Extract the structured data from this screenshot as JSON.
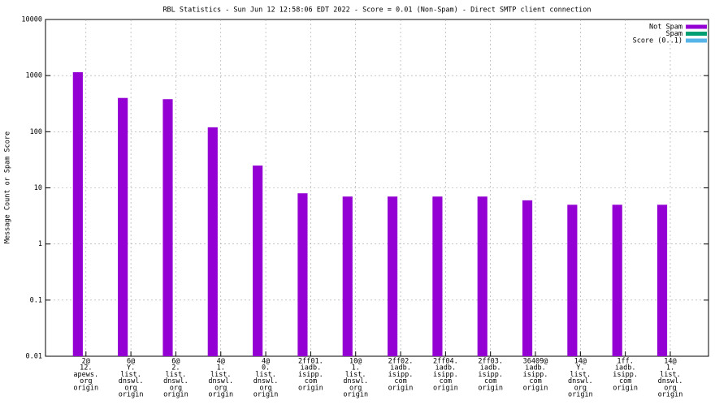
{
  "chart_data": {
    "type": "bar",
    "title": "RBL Statistics - Sun Jun 12 12:58:06 EDT 2022 - Score = 0.01 (Non-Spam) - Direct SMTP client connection",
    "y_label": "Message Count or Spam Score",
    "categories": [
      [
        "2@",
        "12.",
        "apews.",
        "org",
        "origin"
      ],
      [
        "6@",
        "Y.",
        "list.",
        "dnswl.",
        "org",
        "origin"
      ],
      [
        "6@",
        "2.",
        "list.",
        "dnswl.",
        "org",
        "origin"
      ],
      [
        "4@",
        "1.",
        "list.",
        "dnswl.",
        "org",
        "origin"
      ],
      [
        "4@",
        "0.",
        "list.",
        "dnswl.",
        "org",
        "origin"
      ],
      [
        "2ff01.",
        "iadb.",
        "isipp.",
        "com",
        "origin"
      ],
      [
        "10@",
        "1.",
        "list.",
        "dnswl.",
        "org",
        "origin"
      ],
      [
        "2ff02.",
        "iadb.",
        "isipp.",
        "com",
        "origin"
      ],
      [
        "2ff04.",
        "iadb.",
        "isipp.",
        "com",
        "origin"
      ],
      [
        "2ff03.",
        "iadb.",
        "isipp.",
        "com",
        "origin"
      ],
      [
        "36409@",
        "iadb.",
        "isipp.",
        "com",
        "origin"
      ],
      [
        "14@",
        "Y.",
        "list.",
        "dnswl.",
        "org",
        "origin"
      ],
      [
        "1ff.",
        "iadb.",
        "isipp.",
        "com",
        "origin"
      ],
      [
        "14@",
        "1.",
        "list.",
        "dnswl.",
        "org",
        "origin"
      ]
    ],
    "series": [
      {
        "name": "Not Spam",
        "color": "#9400d3",
        "values": [
          1150,
          400,
          380,
          120,
          25,
          8,
          7,
          7,
          7,
          7,
          6,
          5,
          5,
          5
        ]
      },
      {
        "name": "Spam",
        "color": "#009e73",
        "values": [
          null,
          null,
          null,
          null,
          null,
          null,
          null,
          null,
          null,
          null,
          null,
          null,
          null,
          null
        ]
      },
      {
        "name": "Score (0..1)",
        "color": "#56b4e9",
        "values": [
          null,
          null,
          null,
          null,
          null,
          null,
          null,
          null,
          null,
          null,
          null,
          null,
          null,
          null
        ]
      }
    ],
    "log_scale": true,
    "ylim": [
      0.01,
      10000
    ],
    "yticks": [
      0.01,
      0.1,
      1,
      10,
      100,
      1000,
      10000
    ],
    "grid": true,
    "legend": "top-right"
  }
}
